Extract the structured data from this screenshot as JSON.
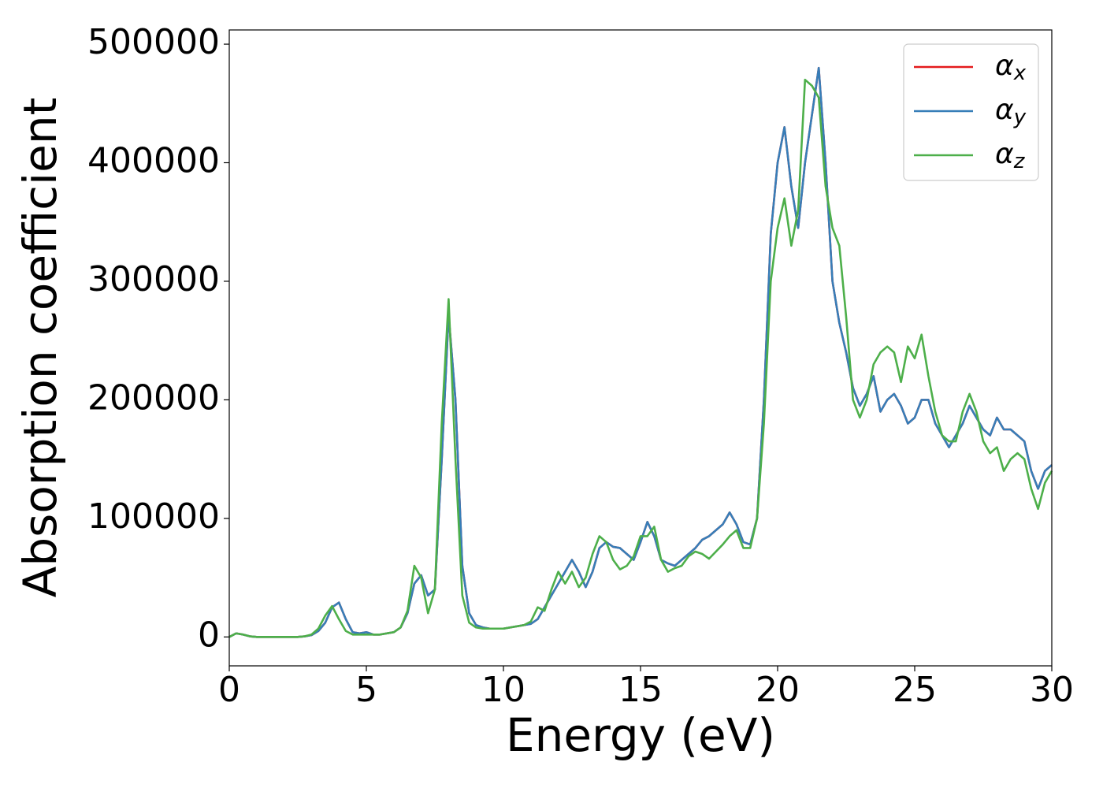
{
  "chart_data": {
    "type": "line",
    "xlabel": "Energy (eV)",
    "ylabel": "Absorption coefficient",
    "xlim": [
      0,
      30
    ],
    "xticks": [
      0,
      5,
      10,
      15,
      20,
      25,
      30
    ],
    "ylim": [
      -24400,
      512000
    ],
    "yticks": [
      0,
      100000,
      200000,
      300000,
      400000,
      500000
    ],
    "legend": "upper right",
    "grid": false,
    "x": [
      0,
      0.25,
      0.5,
      0.75,
      1,
      1.25,
      1.5,
      1.75,
      2,
      2.25,
      2.5,
      2.75,
      3,
      3.25,
      3.5,
      3.75,
      4,
      4.25,
      4.5,
      4.75,
      5,
      5.25,
      5.5,
      5.75,
      6,
      6.25,
      6.5,
      6.75,
      7,
      7.25,
      7.5,
      7.75,
      8,
      8.25,
      8.5,
      8.75,
      9,
      9.25,
      9.5,
      9.75,
      10,
      10.25,
      10.5,
      10.75,
      11,
      11.25,
      11.5,
      11.75,
      12,
      12.25,
      12.5,
      12.75,
      13,
      13.25,
      13.5,
      13.75,
      14,
      14.25,
      14.5,
      14.75,
      15,
      15.25,
      15.5,
      15.75,
      16,
      16.25,
      16.5,
      16.75,
      17,
      17.25,
      17.5,
      17.75,
      18,
      18.25,
      18.5,
      18.75,
      19,
      19.25,
      19.5,
      19.75,
      20,
      20.25,
      20.5,
      20.75,
      21,
      21.25,
      21.5,
      21.75,
      22,
      22.25,
      22.5,
      22.75,
      23,
      23.25,
      23.5,
      23.75,
      24,
      24.25,
      24.5,
      24.75,
      25,
      25.25,
      25.5,
      25.75,
      26,
      26.25,
      26.5,
      26.75,
      27,
      27.25,
      27.5,
      27.75,
      28,
      28.25,
      28.5,
      28.75,
      29,
      29.25,
      29.5,
      29.75,
      30
    ],
    "series": [
      {
        "name": "αx",
        "color": "#e41a1c",
        "values": [
          0,
          3000,
          2000,
          500,
          0,
          0,
          0,
          0,
          0,
          0,
          0,
          500,
          1500,
          5000,
          12000,
          25000,
          29000,
          15000,
          4000,
          3000,
          4000,
          2000,
          2000,
          3000,
          4000,
          8000,
          20000,
          45000,
          52000,
          35000,
          40000,
          150000,
          272000,
          200000,
          60000,
          20000,
          10000,
          8000,
          7000,
          7000,
          7000,
          8000,
          9000,
          10000,
          11000,
          15000,
          25000,
          35000,
          45000,
          55000,
          65000,
          55000,
          42000,
          55000,
          75000,
          80000,
          76000,
          75000,
          70000,
          65000,
          80000,
          97000,
          85000,
          65000,
          62000,
          60000,
          65000,
          70000,
          75000,
          82000,
          85000,
          90000,
          95000,
          105000,
          95000,
          80000,
          78000,
          100000,
          200000,
          340000,
          400000,
          430000,
          380000,
          345000,
          400000,
          440000,
          480000,
          400000,
          300000,
          265000,
          240000,
          210000,
          195000,
          205000,
          220000,
          190000,
          200000,
          205000,
          195000,
          180000,
          185000,
          200000,
          200000,
          180000,
          170000,
          160000,
          170000,
          180000,
          195000,
          185000,
          175000,
          170000,
          185000,
          175000,
          175000,
          170000,
          165000,
          140000,
          125000,
          140000,
          145000
        ]
      },
      {
        "name": "αy",
        "color": "#377eb8",
        "values": [
          0,
          3000,
          2000,
          500,
          0,
          0,
          0,
          0,
          0,
          0,
          0,
          500,
          1500,
          5000,
          12000,
          25000,
          29000,
          15000,
          4000,
          3000,
          4000,
          2000,
          2000,
          3000,
          4000,
          8000,
          20000,
          45000,
          52000,
          35000,
          40000,
          150000,
          272000,
          200000,
          60000,
          20000,
          10000,
          8000,
          7000,
          7000,
          7000,
          8000,
          9000,
          10000,
          11000,
          15000,
          25000,
          35000,
          45000,
          55000,
          65000,
          55000,
          42000,
          55000,
          75000,
          80000,
          76000,
          75000,
          70000,
          65000,
          80000,
          97000,
          85000,
          65000,
          62000,
          60000,
          65000,
          70000,
          75000,
          82000,
          85000,
          90000,
          95000,
          105000,
          95000,
          80000,
          78000,
          100000,
          200000,
          340000,
          400000,
          430000,
          380000,
          345000,
          400000,
          440000,
          480000,
          400000,
          300000,
          265000,
          240000,
          210000,
          195000,
          205000,
          220000,
          190000,
          200000,
          205000,
          195000,
          180000,
          185000,
          200000,
          200000,
          180000,
          170000,
          160000,
          170000,
          180000,
          195000,
          185000,
          175000,
          170000,
          185000,
          175000,
          175000,
          170000,
          165000,
          140000,
          125000,
          140000,
          145000
        ]
      },
      {
        "name": "αz",
        "color": "#4daf4a",
        "values": [
          0,
          3000,
          2000,
          500,
          0,
          0,
          0,
          0,
          0,
          0,
          0,
          500,
          2000,
          7000,
          18000,
          26000,
          15000,
          5000,
          2000,
          2000,
          2000,
          2000,
          2000,
          3000,
          4000,
          8000,
          22000,
          60000,
          50000,
          20000,
          40000,
          180000,
          285000,
          150000,
          35000,
          12000,
          8000,
          7000,
          7000,
          7000,
          7000,
          8000,
          9000,
          10000,
          13000,
          25000,
          22000,
          40000,
          55000,
          45000,
          55000,
          42000,
          50000,
          70000,
          85000,
          80000,
          65000,
          57000,
          60000,
          68000,
          85000,
          85000,
          93000,
          65000,
          55000,
          58000,
          60000,
          68000,
          72000,
          70000,
          66000,
          72000,
          78000,
          85000,
          90000,
          75000,
          75000,
          100000,
          180000,
          300000,
          345000,
          370000,
          330000,
          360000,
          470000,
          465000,
          455000,
          380000,
          345000,
          330000,
          270000,
          200000,
          185000,
          200000,
          230000,
          240000,
          245000,
          240000,
          215000,
          245000,
          235000,
          255000,
          220000,
          190000,
          170000,
          165000,
          165000,
          190000,
          205000,
          190000,
          165000,
          155000,
          160000,
          140000,
          150000,
          155000,
          150000,
          125000,
          108000,
          130000,
          140000
        ]
      }
    ]
  }
}
